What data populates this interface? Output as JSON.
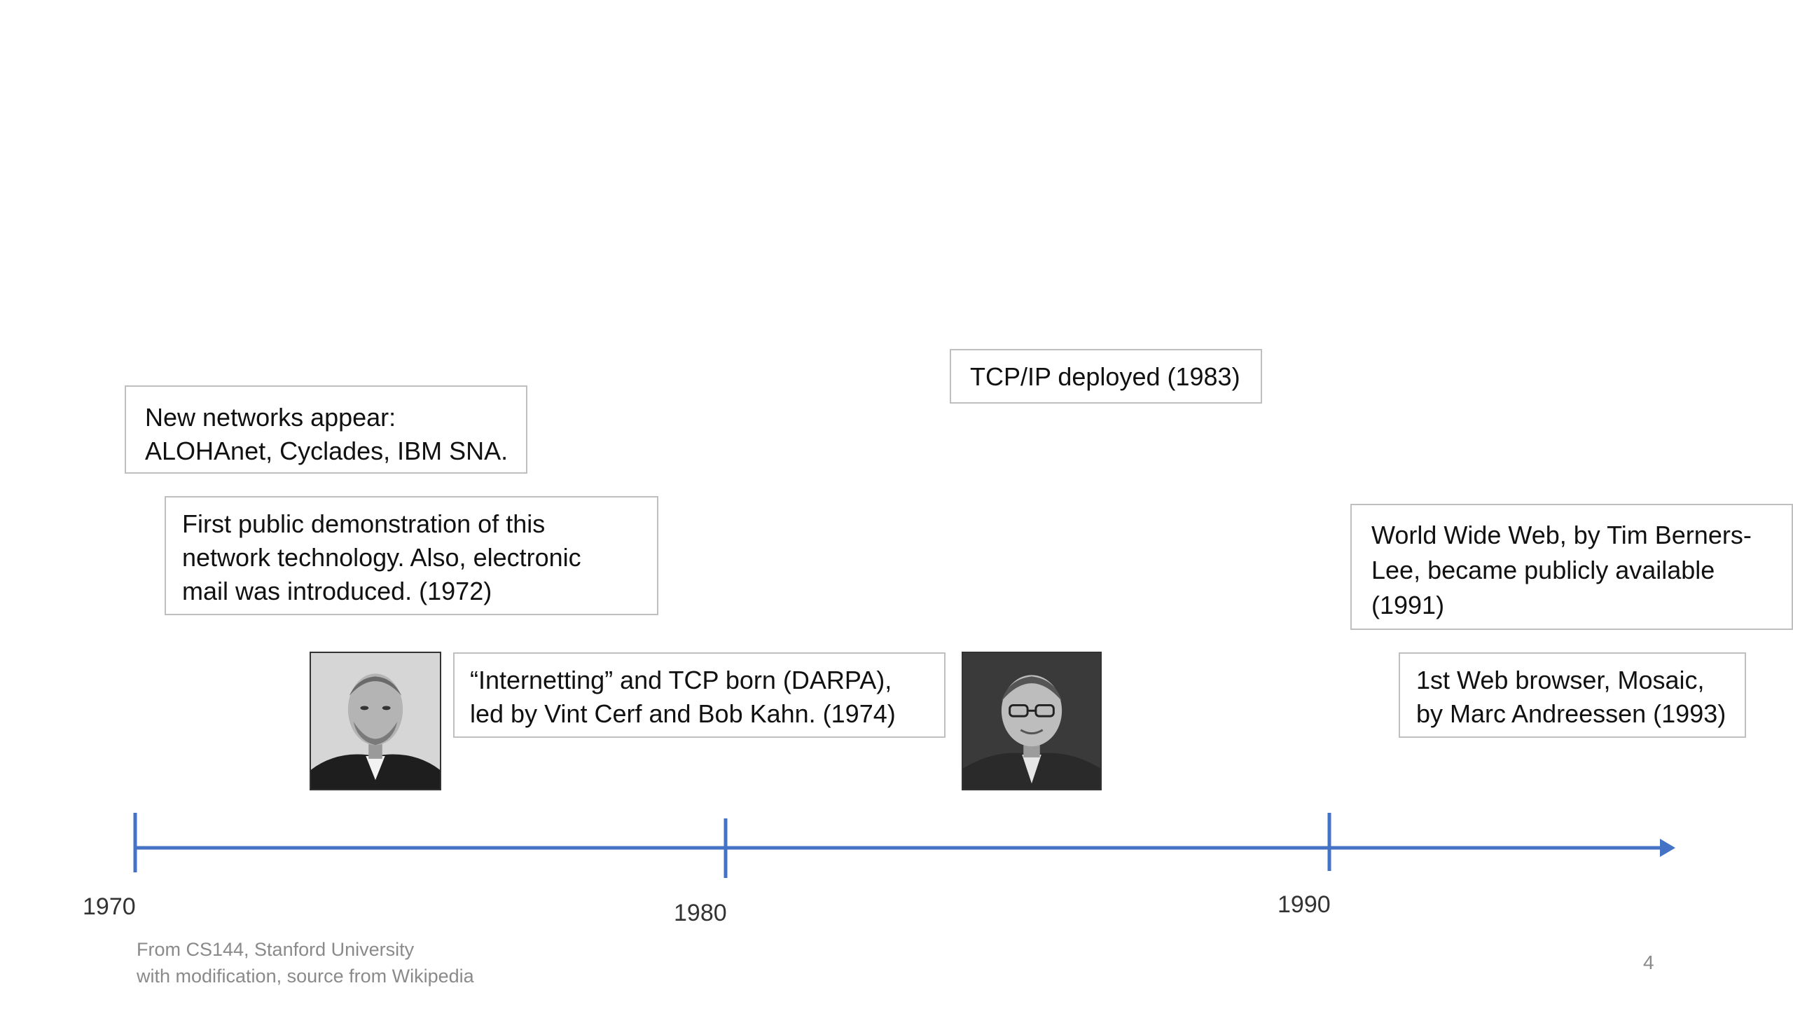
{
  "events": {
    "new_networks": "New networks appear:\nALOHAnet, Cyclades, IBM SNA.",
    "first_demo": "First public demonstration of this\nnetwork technology. Also, electronic\nmail was introduced. (1972)",
    "internetting": "“Internetting” and TCP born (DARPA),\nled by Vint Cerf and Bob Kahn. (1974)",
    "tcpip": "TCP/IP deployed (1983)",
    "www": "World Wide Web, by Tim Berners-\nLee, became publicly available\n(1991)",
    "mosaic": "1st Web browser, Mosaic,\nby Marc Andreessen (1993)"
  },
  "timeline": {
    "years": [
      "1970",
      "1980",
      "1990"
    ],
    "axis_color": "#4472C4"
  },
  "footer": {
    "line1": "From CS144, Stanford University",
    "line2": "with modification, source from Wikipedia"
  },
  "page_number": "4"
}
